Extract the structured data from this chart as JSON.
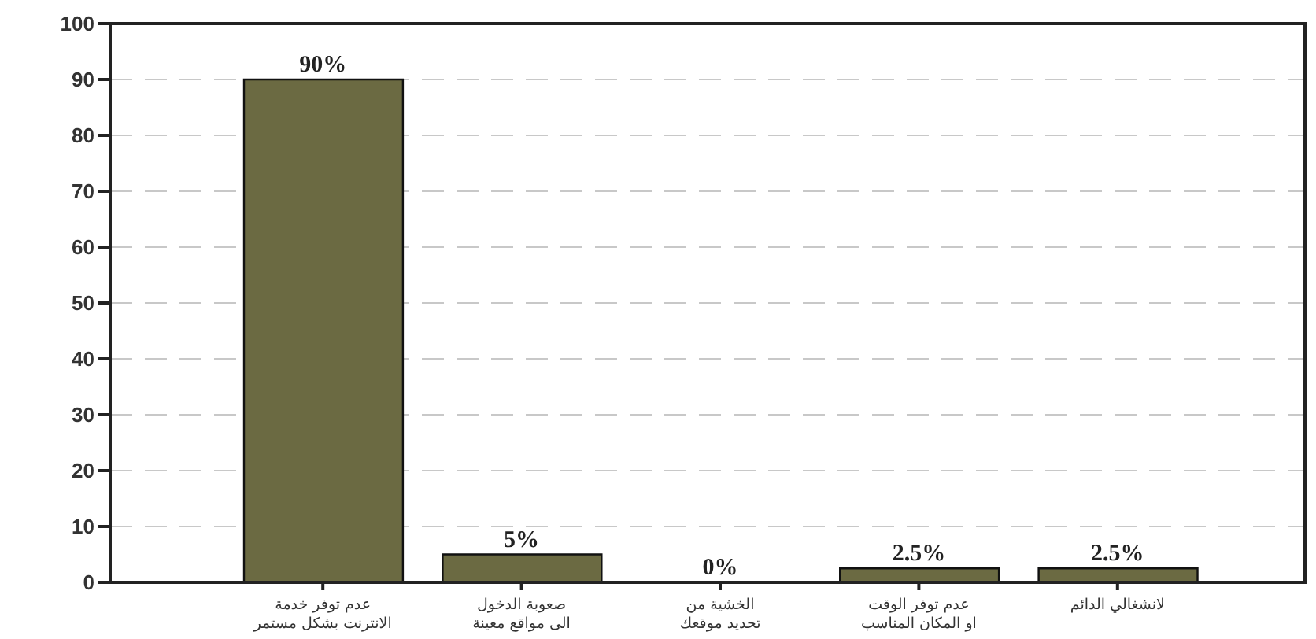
{
  "chart_data": {
    "type": "bar",
    "categories": [
      "عدم توفر خدمة\nالانترنت بشكل مستمر",
      "صعوبة الدخول\nالى مواقع معينة",
      "الخشية من\nتحديد موقعك",
      "عدم توفر الوقت\nاو المكان المناسب",
      "لانشغالي الدائم"
    ],
    "values": [
      90,
      5,
      0,
      2.5,
      2.5
    ],
    "color": "#6b6a42",
    "value_labels": [
      "90%",
      "5%",
      "0%",
      "2.5%",
      "2.5%"
    ],
    "ylim": [
      0,
      100
    ],
    "yticks": [
      0,
      10,
      20,
      30,
      40,
      50,
      60,
      70,
      80,
      90,
      100
    ],
    "grid": "y"
  }
}
